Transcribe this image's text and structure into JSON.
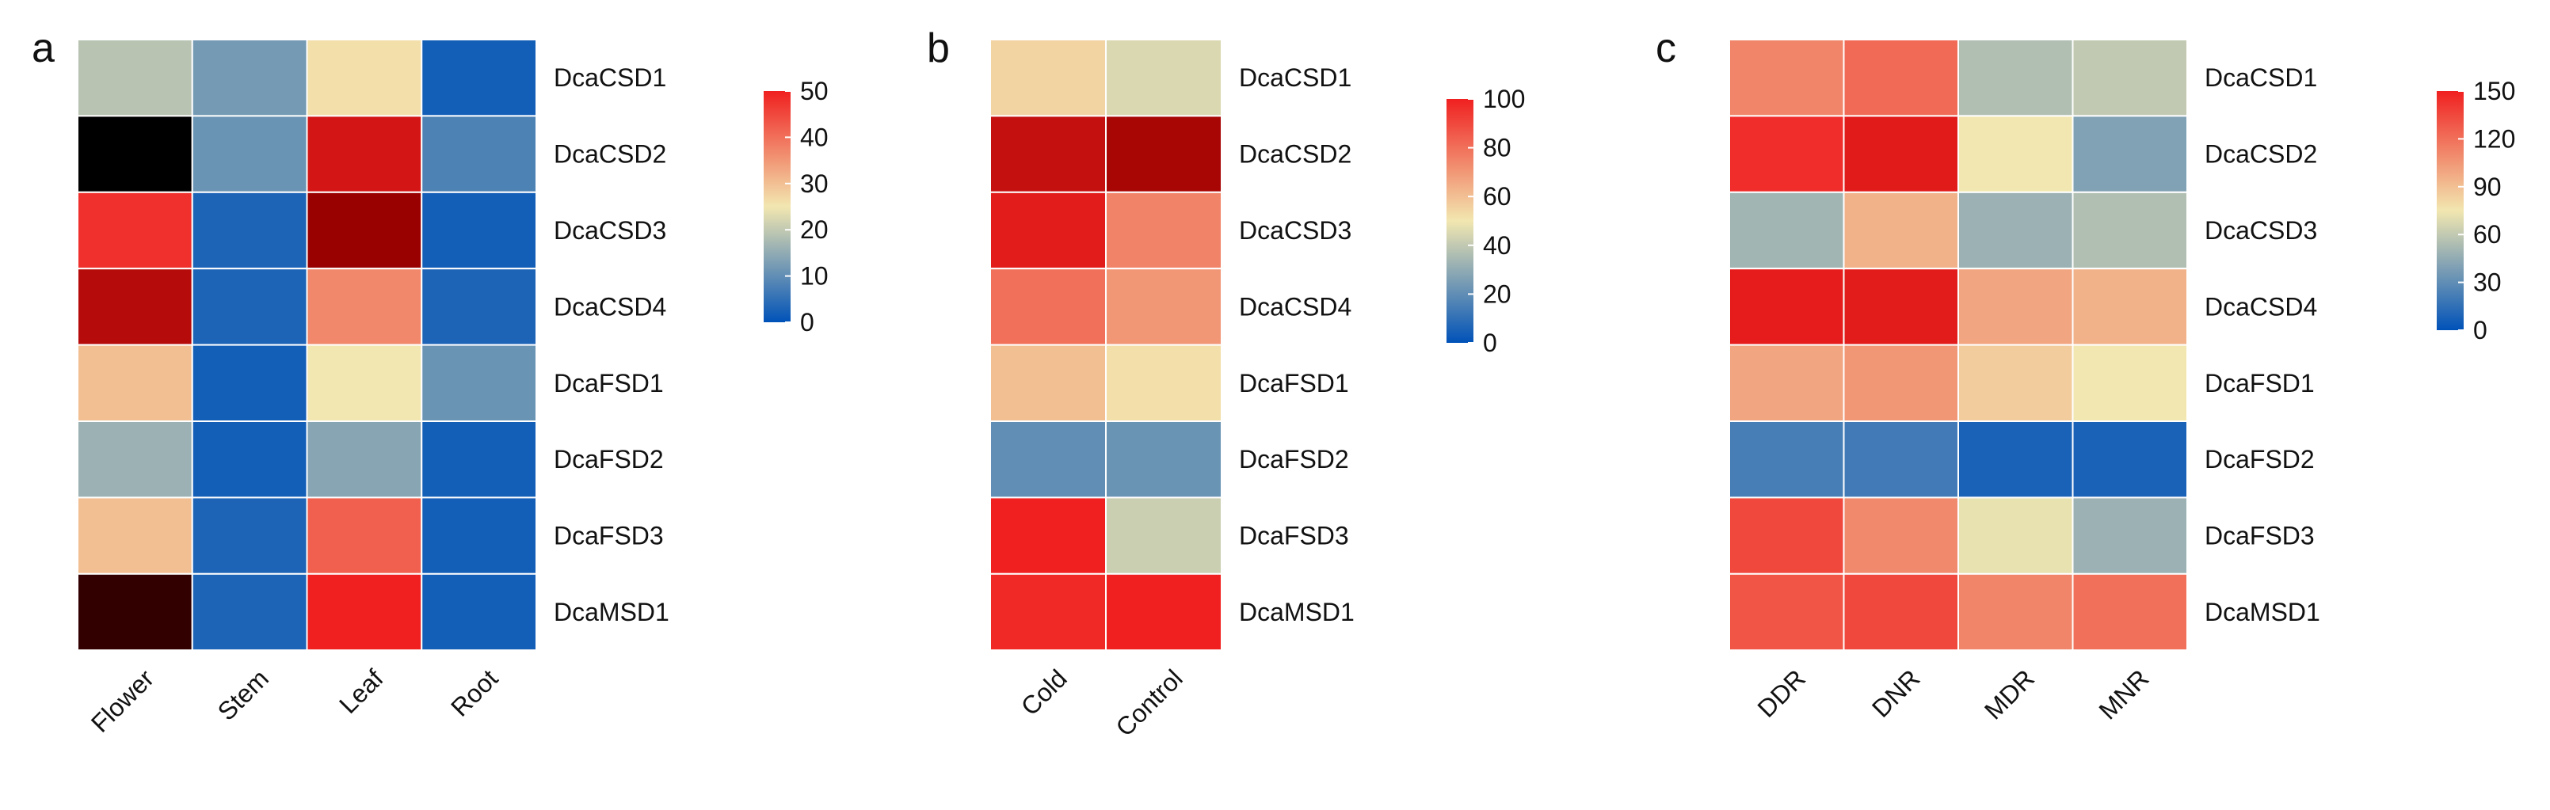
{
  "palette": [
    "#0052b8",
    "#f2e7b0",
    "#f02020",
    "#990000"
  ],
  "chart_data": [
    {
      "type": "heatmap",
      "panel": "a",
      "columns": [
        "Flower",
        "Stem",
        "Leaf",
        "Root"
      ],
      "rows": [
        "DcaCSD1",
        "DcaCSD2",
        "DcaCSD3",
        "DcaCSD4",
        "DcaFSD1",
        "DcaFSD2",
        "DcaFSD3",
        "DcaMSD1"
      ],
      "values": [
        [
          19,
          12,
          26,
          2
        ],
        [
          null,
          11,
          55,
          8
        ],
        [
          48,
          3,
          68,
          2
        ],
        [
          60,
          3,
          37,
          3
        ],
        [
          30,
          2,
          25,
          11
        ],
        [
          16,
          2,
          14,
          2
        ],
        [
          30,
          3,
          42,
          2
        ],
        [
          null,
          3,
          50,
          2
        ]
      ],
      "scale_min": 0,
      "scale_max": 50,
      "legend_ticks": [
        0,
        10,
        20,
        30,
        40,
        50
      ],
      "legend_placement": "right",
      "out_of_range_color": "#000000",
      "near_black_cells": {
        "1_0": "#000000",
        "7_0": "#330000"
      }
    },
    {
      "type": "heatmap",
      "panel": "b",
      "columns": [
        "Cold",
        "Control"
      ],
      "rows": [
        "DcaCSD1",
        "DcaCSD2",
        "DcaCSD3",
        "DcaCSD4",
        "DcaFSD1",
        "DcaFSD2",
        "DcaFSD3",
        "DcaMSD1"
      ],
      "values": [
        [
          55,
          45
        ],
        [
          115,
          125
        ],
        [
          105,
          75
        ],
        [
          80,
          70
        ],
        [
          60,
          52
        ],
        [
          20,
          22
        ],
        [
          100,
          42
        ],
        [
          98,
          100
        ]
      ],
      "scale_min": 0,
      "scale_max": 100,
      "legend_ticks": [
        0,
        20,
        40,
        60,
        80,
        100
      ],
      "legend_placement": "right"
    },
    {
      "type": "heatmap",
      "panel": "c",
      "columns": [
        "DDR",
        "DNR",
        "MDR",
        "MNR"
      ],
      "rows": [
        "DcaCSD1",
        "DcaCSD2",
        "DcaCSD3",
        "DcaCSD4",
        "DcaFSD1",
        "DcaFSD2",
        "DcaFSD3",
        "DcaMSD1"
      ],
      "values": [
        [
          112,
          122,
          55,
          60
        ],
        [
          145,
          158,
          75,
          40
        ],
        [
          50,
          95,
          48,
          55
        ],
        [
          155,
          157,
          100,
          95
        ],
        [
          100,
          105,
          85,
          75
        ],
        [
          22,
          20,
          8,
          8
        ],
        [
          135,
          110,
          72,
          48
        ],
        [
          130,
          135,
          112,
          120
        ]
      ],
      "scale_min": 0,
      "scale_max": 150,
      "legend_ticks": [
        0,
        30,
        60,
        90,
        120,
        150
      ],
      "legend_placement": "right"
    }
  ]
}
